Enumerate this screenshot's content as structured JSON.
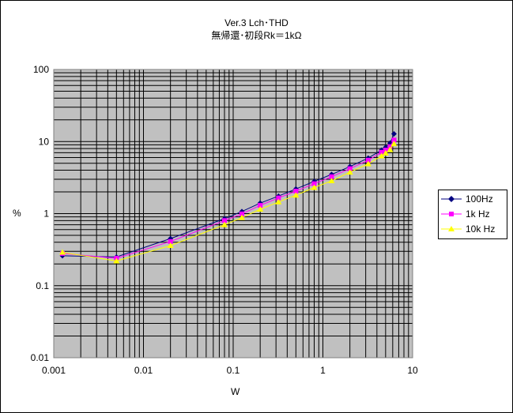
{
  "chart_data": {
    "type": "line",
    "title": "Ver.3 Lch･THD",
    "subtitle": "無帰還･初段Rk＝1kΩ",
    "xlabel": "W",
    "ylabel": "%",
    "x_scale": "log",
    "y_scale": "log",
    "xlim": [
      0.001,
      10
    ],
    "ylim": [
      0.01,
      100
    ],
    "x_tick_labels": [
      "0.001",
      "0.01",
      "0.1",
      "1",
      "10"
    ],
    "y_tick_labels": [
      "100",
      "10",
      "1",
      "0.1",
      "0.01"
    ],
    "grid": true,
    "legend_position": "right",
    "series": [
      {
        "name": "100Hz",
        "color": "#000080",
        "marker": "diamond",
        "x": [
          0.00125,
          0.005,
          0.02,
          0.08,
          0.125,
          0.2,
          0.32,
          0.5,
          0.8,
          1.25,
          2,
          3.2,
          4.5,
          5.0,
          5.6,
          6.2
        ],
        "y": [
          0.26,
          0.25,
          0.45,
          0.85,
          1.07,
          1.4,
          1.75,
          2.2,
          2.8,
          3.5,
          4.5,
          5.9,
          7.6,
          8.3,
          9.5,
          12.8
        ]
      },
      {
        "name": "1k Hz",
        "color": "#ff00ff",
        "marker": "square",
        "x": [
          0.00125,
          0.005,
          0.02,
          0.08,
          0.125,
          0.2,
          0.32,
          0.5,
          0.8,
          1.25,
          2,
          3.2,
          4.5,
          5.0,
          5.6,
          6.2
        ],
        "y": [
          0.28,
          0.24,
          0.41,
          0.8,
          0.99,
          1.3,
          1.65,
          2.05,
          2.6,
          3.25,
          4.2,
          5.5,
          7.1,
          7.6,
          8.5,
          10.5
        ]
      },
      {
        "name": "10k Hz",
        "color": "#ffff00",
        "marker": "triangle",
        "x": [
          0.00125,
          0.005,
          0.02,
          0.08,
          0.125,
          0.2,
          0.32,
          0.5,
          0.8,
          1.25,
          2,
          3.2,
          4.5,
          5.0,
          5.6,
          6.2
        ],
        "y": [
          0.29,
          0.22,
          0.36,
          0.7,
          0.88,
          1.15,
          1.45,
          1.8,
          2.3,
          2.85,
          3.75,
          4.9,
          6.3,
          6.9,
          7.7,
          9.3
        ]
      }
    ]
  }
}
